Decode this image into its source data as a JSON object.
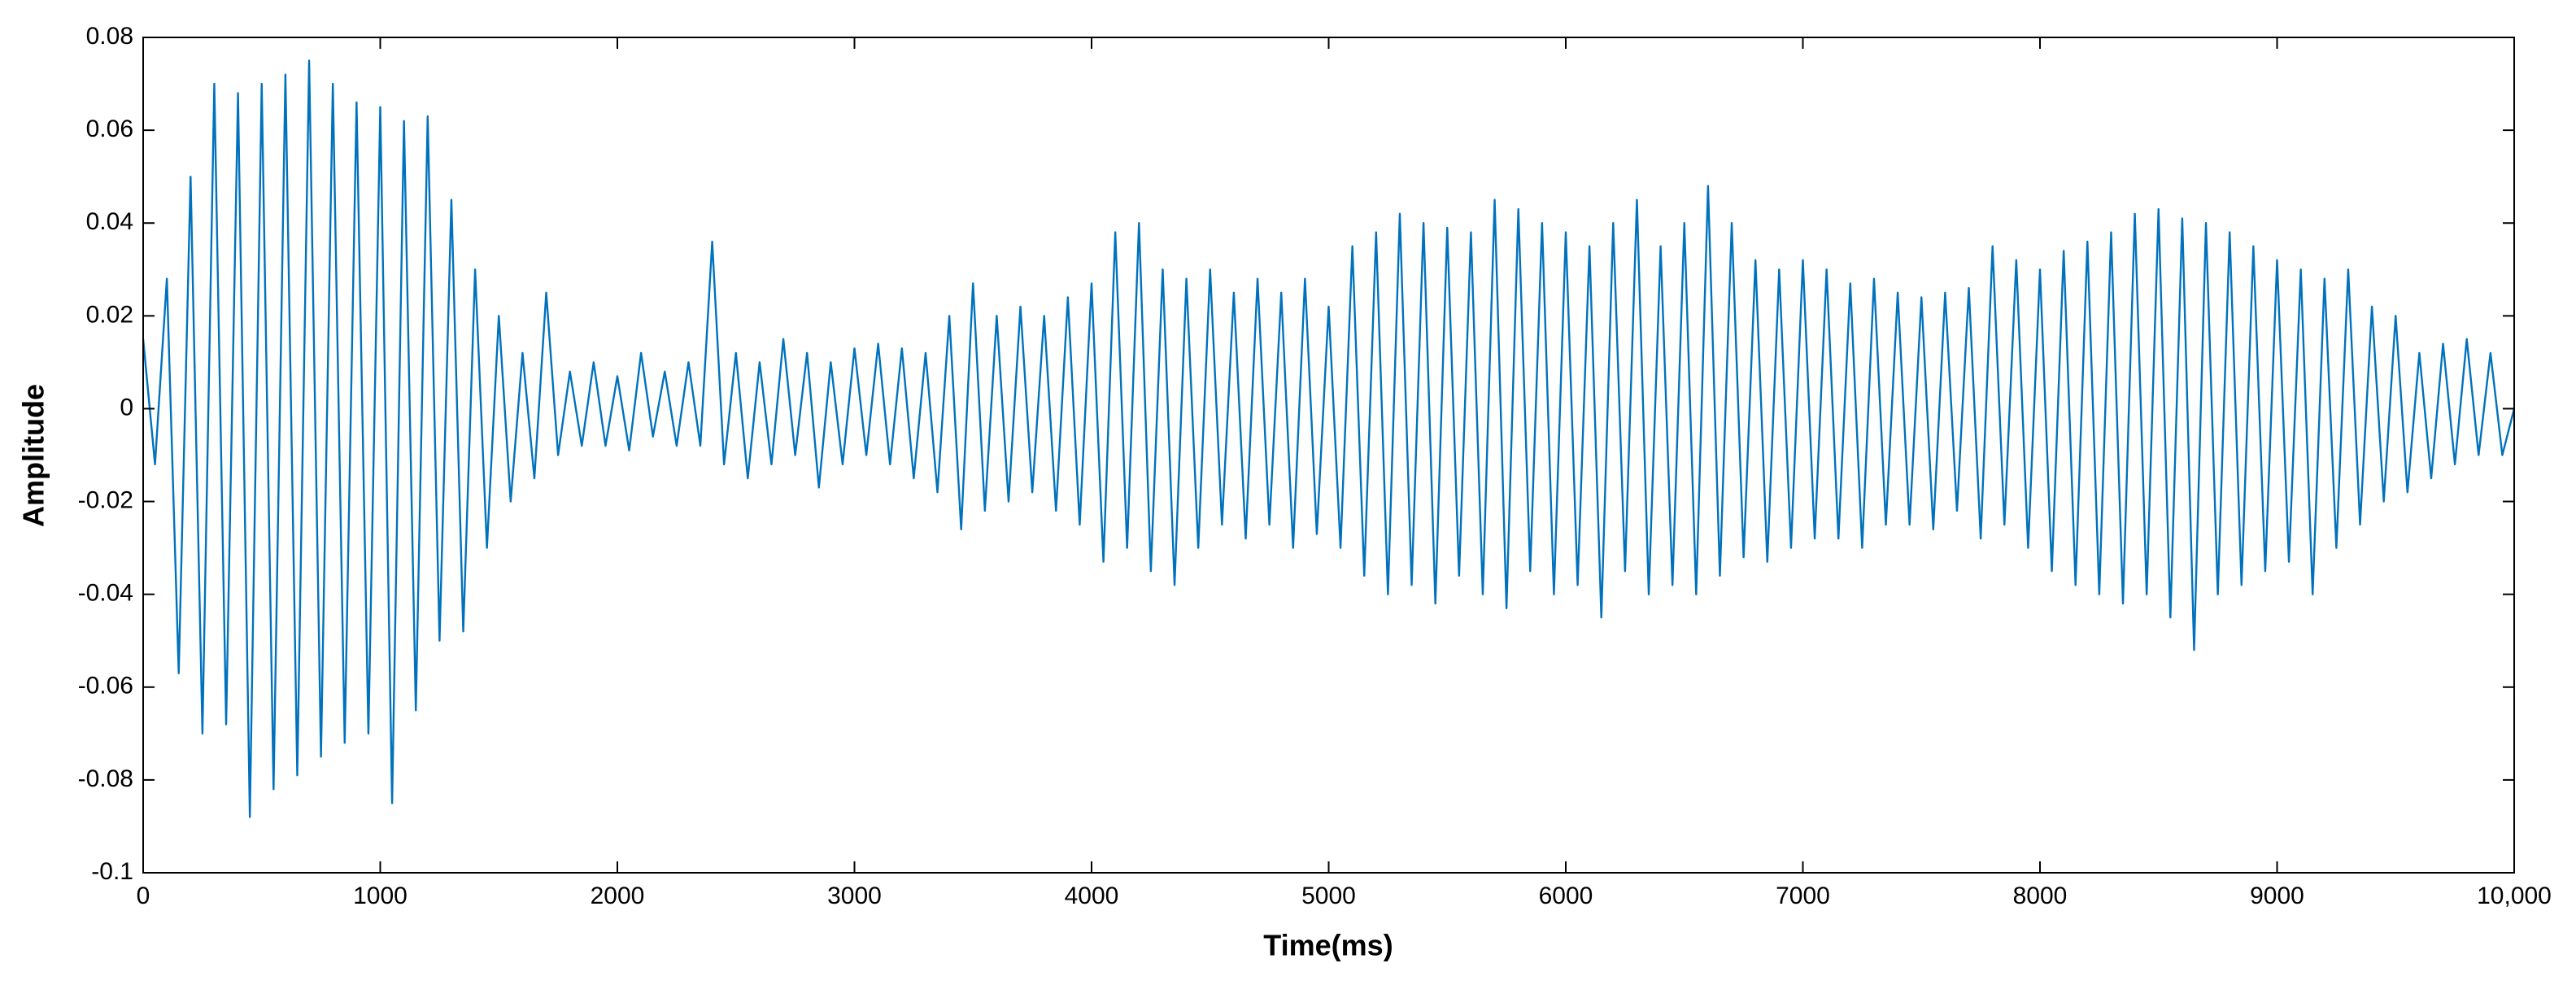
{
  "chart_data": {
    "type": "line",
    "xlabel": "Time(ms)",
    "ylabel": "Amplitude",
    "color": "#0072bd",
    "xlim": [
      0,
      10000
    ],
    "ylim": [
      -0.1,
      0.08
    ],
    "xticks": [
      0,
      1000,
      2000,
      3000,
      4000,
      5000,
      6000,
      7000,
      8000,
      9000,
      {
        "value": 10000,
        "label": "10,000"
      }
    ],
    "yticks": [
      -0.1,
      -0.08,
      -0.06,
      -0.04,
      -0.02,
      0,
      0.02,
      0.04,
      0.06,
      0.08
    ],
    "x": [
      0,
      50,
      100,
      150,
      200,
      250,
      300,
      350,
      400,
      450,
      500,
      550,
      600,
      650,
      700,
      750,
      800,
      850,
      900,
      950,
      1000,
      1050,
      1100,
      1150,
      1200,
      1250,
      1300,
      1350,
      1400,
      1450,
      1500,
      1550,
      1600,
      1650,
      1700,
      1750,
      1800,
      1850,
      1900,
      1950,
      2000,
      2050,
      2100,
      2150,
      2200,
      2250,
      2300,
      2350,
      2400,
      2450,
      2500,
      2550,
      2600,
      2650,
      2700,
      2750,
      2800,
      2850,
      2900,
      2950,
      3000,
      3050,
      3100,
      3150,
      3200,
      3250,
      3300,
      3350,
      3400,
      3450,
      3500,
      3550,
      3600,
      3650,
      3700,
      3750,
      3800,
      3850,
      3900,
      3950,
      4000,
      4050,
      4100,
      4150,
      4200,
      4250,
      4300,
      4350,
      4400,
      4450,
      4500,
      4550,
      4600,
      4650,
      4700,
      4750,
      4800,
      4850,
      4900,
      4950,
      5000,
      5050,
      5100,
      5150,
      5200,
      5250,
      5300,
      5350,
      5400,
      5450,
      5500,
      5550,
      5600,
      5650,
      5700,
      5750,
      5800,
      5850,
      5900,
      5950,
      6000,
      6050,
      6100,
      6150,
      6200,
      6250,
      6300,
      6350,
      6400,
      6450,
      6500,
      6550,
      6600,
      6650,
      6700,
      6750,
      6800,
      6850,
      6900,
      6950,
      7000,
      7050,
      7100,
      7150,
      7200,
      7250,
      7300,
      7350,
      7400,
      7450,
      7500,
      7550,
      7600,
      7650,
      7700,
      7750,
      7800,
      7850,
      7900,
      7950,
      8000,
      8050,
      8100,
      8150,
      8200,
      8250,
      8300,
      8350,
      8400,
      8450,
      8500,
      8550,
      8600,
      8650,
      8700,
      8750,
      8800,
      8850,
      8900,
      8950,
      9000,
      9050,
      9100,
      9150,
      9200,
      9250,
      9300,
      9350,
      9400,
      9450,
      9500,
      9550,
      9600,
      9650,
      9700,
      9750,
      9800,
      9850,
      9900,
      9950,
      10000
    ],
    "values": [
      0.015,
      -0.012,
      0.028,
      -0.057,
      0.05,
      -0.07,
      0.07,
      -0.068,
      0.068,
      -0.088,
      0.07,
      -0.082,
      0.072,
      -0.079,
      0.075,
      -0.075,
      0.07,
      -0.072,
      0.066,
      -0.07,
      0.065,
      -0.085,
      0.062,
      -0.065,
      0.063,
      -0.05,
      0.045,
      -0.048,
      0.03,
      -0.03,
      0.02,
      -0.02,
      0.012,
      -0.015,
      0.025,
      -0.01,
      0.008,
      -0.008,
      0.01,
      -0.008,
      0.007,
      -0.009,
      0.012,
      -0.006,
      0.008,
      -0.008,
      0.01,
      -0.008,
      0.036,
      -0.012,
      0.012,
      -0.015,
      0.01,
      -0.012,
      0.015,
      -0.01,
      0.012,
      -0.017,
      0.01,
      -0.012,
      0.013,
      -0.01,
      0.014,
      -0.012,
      0.013,
      -0.015,
      0.012,
      -0.018,
      0.02,
      -0.026,
      0.027,
      -0.022,
      0.02,
      -0.02,
      0.022,
      -0.018,
      0.02,
      -0.022,
      0.024,
      -0.025,
      0.027,
      -0.033,
      0.038,
      -0.03,
      0.04,
      -0.035,
      0.03,
      -0.038,
      0.028,
      -0.03,
      0.03,
      -0.025,
      0.025,
      -0.028,
      0.028,
      -0.025,
      0.025,
      -0.03,
      0.028,
      -0.027,
      0.022,
      -0.03,
      0.035,
      -0.036,
      0.038,
      -0.04,
      0.042,
      -0.038,
      0.04,
      -0.042,
      0.039,
      -0.036,
      0.038,
      -0.04,
      0.045,
      -0.043,
      0.043,
      -0.035,
      0.04,
      -0.04,
      0.038,
      -0.038,
      0.035,
      -0.045,
      0.04,
      -0.035,
      0.045,
      -0.04,
      0.035,
      -0.038,
      0.04,
      -0.04,
      0.048,
      -0.036,
      0.04,
      -0.032,
      0.032,
      -0.033,
      0.03,
      -0.03,
      0.032,
      -0.028,
      0.03,
      -0.028,
      0.027,
      -0.03,
      0.028,
      -0.025,
      0.025,
      -0.025,
      0.024,
      -0.026,
      0.025,
      -0.022,
      0.026,
      -0.028,
      0.035,
      -0.025,
      0.032,
      -0.03,
      0.03,
      -0.035,
      0.034,
      -0.038,
      0.036,
      -0.04,
      0.038,
      -0.042,
      0.042,
      -0.04,
      0.043,
      -0.045,
      0.041,
      -0.052,
      0.04,
      -0.04,
      0.038,
      -0.038,
      0.035,
      -0.035,
      0.032,
      -0.033,
      0.03,
      -0.04,
      0.028,
      -0.03,
      0.03,
      -0.025,
      0.022,
      -0.02,
      0.02,
      -0.018,
      0.012,
      -0.015,
      0.014,
      -0.012,
      0.015,
      -0.01,
      0.012,
      -0.01,
      0
    ]
  }
}
